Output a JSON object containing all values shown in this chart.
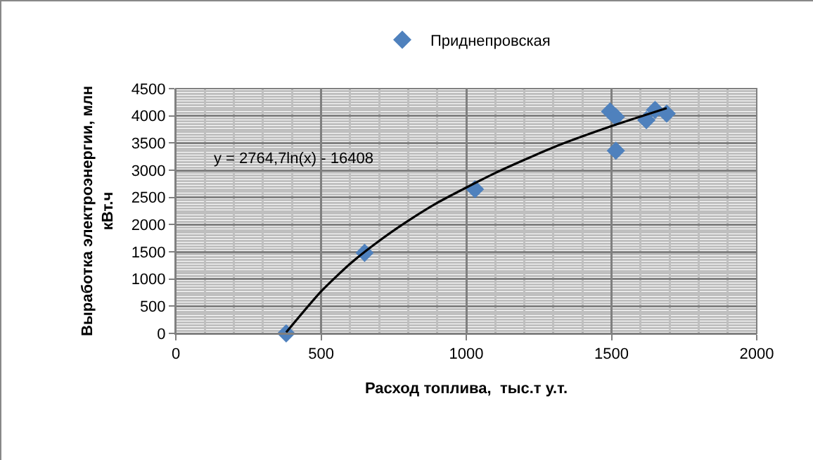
{
  "chart_data": {
    "type": "scatter",
    "xlabel": "Расход топлива,  тыс.т у.т.",
    "ylabel": "Выработка электроэнергии, млн кВт.ч",
    "x": [
      380,
      650,
      1030,
      1495,
      1515,
      1515,
      1620,
      1650,
      1690
    ],
    "series": [
      {
        "name": "Приднепровская",
        "color": "#4f81bd",
        "marker": "diamond",
        "values": [
          0,
          1480,
          2650,
          4080,
          3980,
          3360,
          3920,
          4110,
          4040
        ]
      },
      {
        "type": "line",
        "color": "#000000",
        "x": [
          380,
          500,
          600,
          700,
          800,
          900,
          1100,
          1300,
          1500,
          1690
        ],
        "values": [
          20,
          770,
          1280,
          1700,
          2070,
          2400,
          2950,
          3420,
          3810,
          4140
        ]
      }
    ],
    "annotations": [
      "y = 2764,7ln(x) - 16408"
    ],
    "xlim": [
      0,
      2000
    ],
    "xticks": [
      0,
      500,
      1000,
      1500,
      2000
    ],
    "ylim": [
      0,
      4500
    ],
    "yticks": [
      0,
      500,
      1000,
      1500,
      2000,
      2500,
      3000,
      3500,
      4000,
      4500
    ],
    "grid": true,
    "legend": "top"
  }
}
